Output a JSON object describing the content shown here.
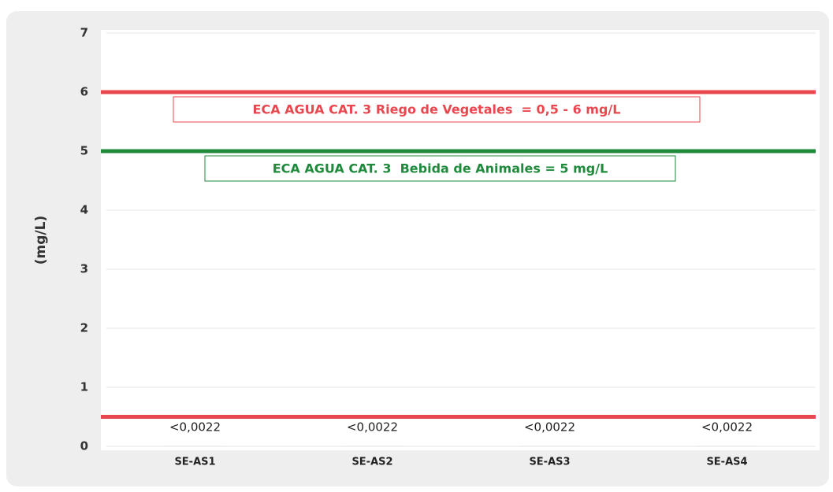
{
  "chart_data": {
    "type": "bar",
    "y_label": "(mg/L)",
    "categories": [
      "SE-AS1",
      "SE-AS2",
      "SE-AS3",
      "SE-AS4"
    ],
    "values": [
      0.0022,
      0.0022,
      0.0022,
      0.0022
    ],
    "value_labels": [
      "<0,0022",
      "<0,0022",
      "<0,0022",
      "<0,0022"
    ],
    "color": "#bfbfbf",
    "ylim": [
      0,
      7
    ],
    "yticks": [
      0,
      1,
      2,
      3,
      4,
      5,
      6,
      7
    ],
    "grid": true,
    "reference_lines": [
      {
        "value": 6,
        "color": "#e8474f"
      },
      {
        "value": 5,
        "color": "#1f8a3c"
      },
      {
        "value": 0.5,
        "color": "#e8474f"
      }
    ],
    "annotations": [
      {
        "text": "ECA AGUA CAT. 3 Riego de Vegetales  = 0,5 - 6 mg/L",
        "color": "#e8474f"
      },
      {
        "text": "ECA AGUA CAT. 3  Bebida de Animales = 5 mg/L",
        "color": "#1f8a3c"
      }
    ]
  }
}
